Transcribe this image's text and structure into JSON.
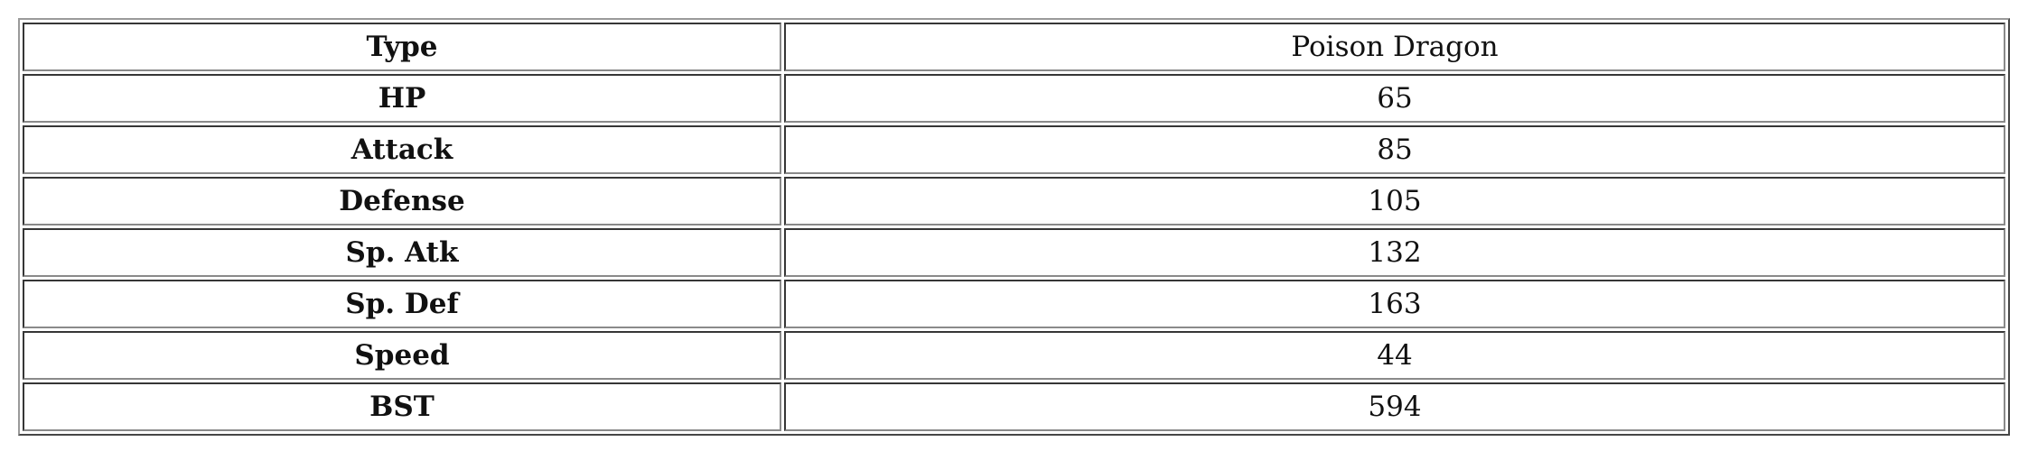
{
  "table": {
    "rows": [
      {
        "label": "Type",
        "value": "Poison Dragon"
      },
      {
        "label": "HP",
        "value": "65"
      },
      {
        "label": "Attack",
        "value": "85"
      },
      {
        "label": "Defense",
        "value": "105"
      },
      {
        "label": "Sp. Atk",
        "value": "132"
      },
      {
        "label": "Sp. Def",
        "value": "163"
      },
      {
        "label": "Speed",
        "value": "44"
      },
      {
        "label": "BST",
        "value": "594"
      }
    ]
  }
}
